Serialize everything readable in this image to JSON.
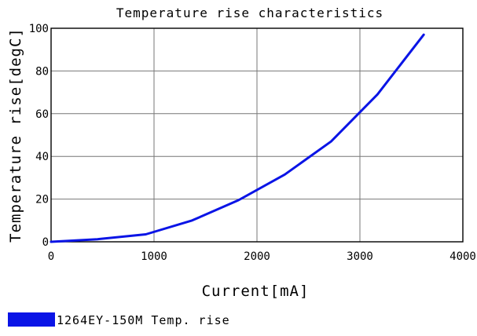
{
  "chart_data": {
    "type": "line",
    "title": "Temperature rise characteristics",
    "xlabel": "Current[mA]",
    "ylabel": "Temperature rise[degC]",
    "xlim": [
      0,
      4000
    ],
    "ylim": [
      0,
      100
    ],
    "xticks": [
      0,
      1000,
      2000,
      3000,
      4000
    ],
    "yticks": [
      0,
      20,
      40,
      60,
      80,
      100
    ],
    "xtick_labels": [
      "0",
      "1000",
      "2000",
      "3000",
      "4000"
    ],
    "ytick_labels": [
      "0",
      "20",
      "40",
      "60",
      "80",
      "100"
    ],
    "grid": true,
    "legend_position": "bottom-left",
    "series": [
      {
        "name": "1264EY-150M Temp. rise",
        "color": "#0a14e6",
        "x": [
          0,
          450,
          920,
          1370,
          1820,
          2270,
          2720,
          3170,
          3620
        ],
        "y": [
          0,
          1.2,
          3.5,
          10,
          19.5,
          31.5,
          47,
          69,
          97
        ]
      }
    ]
  }
}
